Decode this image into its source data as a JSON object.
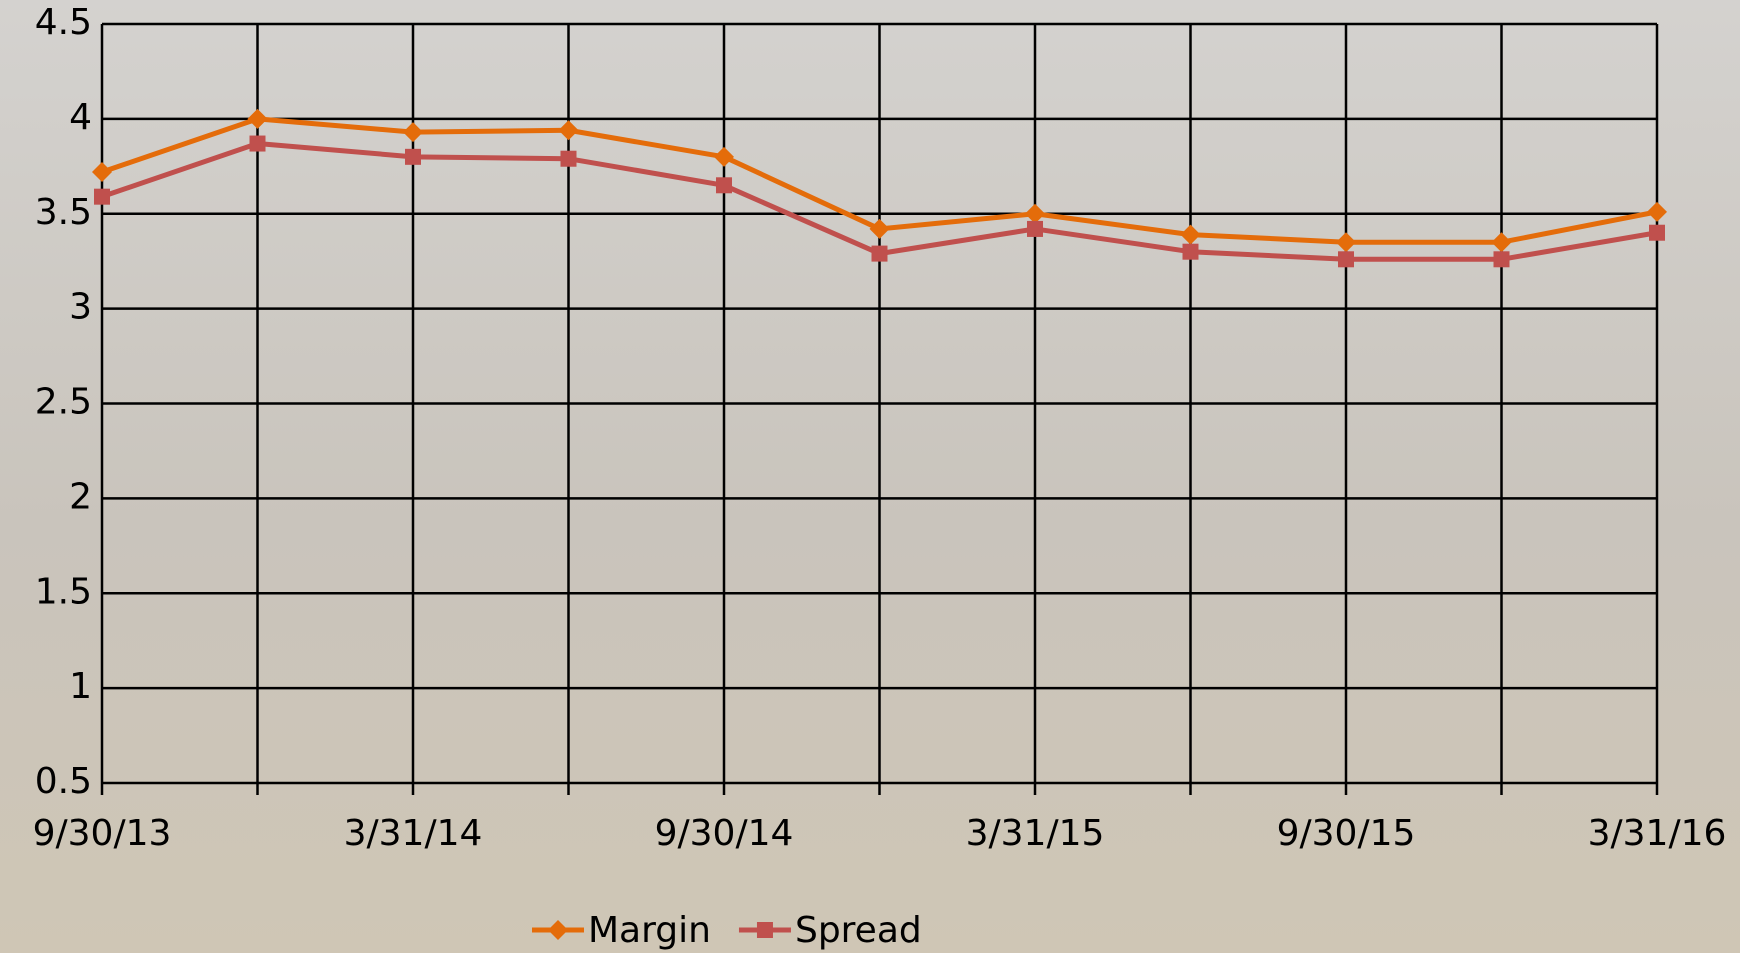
{
  "chart_data": {
    "type": "line",
    "categories": [
      "9/30/13",
      null,
      "3/31/14",
      null,
      "9/30/14",
      null,
      "3/31/15",
      null,
      "9/30/15",
      null,
      "3/31/16"
    ],
    "series": [
      {
        "name": "Margin",
        "color": "#e46c0a",
        "marker": "diamond",
        "values": [
          3.72,
          4.0,
          3.93,
          3.94,
          3.8,
          3.42,
          3.5,
          3.39,
          3.35,
          3.35,
          3.51
        ]
      },
      {
        "name": "Spread",
        "color": "#c0504d",
        "marker": "square",
        "values": [
          3.59,
          3.87,
          3.8,
          3.79,
          3.65,
          3.29,
          3.42,
          3.3,
          3.26,
          3.26,
          3.4
        ]
      }
    ],
    "ylim": [
      0.5,
      4.5
    ],
    "yticks": [
      0.5,
      1,
      1.5,
      2,
      2.5,
      3,
      3.5,
      4,
      4.5
    ],
    "grid": true,
    "legend": "bottom"
  }
}
